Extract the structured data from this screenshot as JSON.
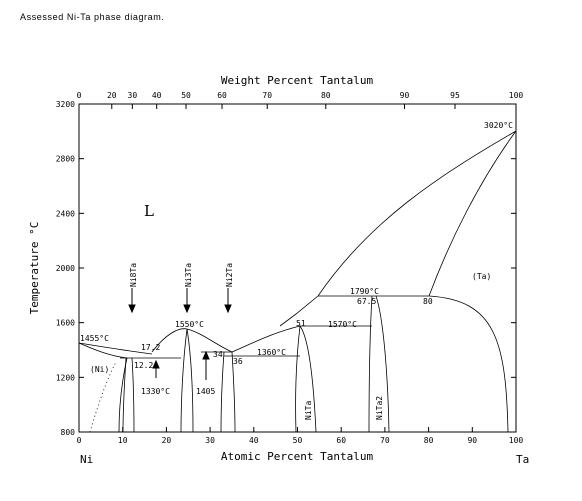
{
  "title": "Assessed Ni-Ta phase diagram.",
  "axes": {
    "top_title": "Weight Percent Tantalum",
    "bottom_title": "Atomic Percent Tantalum",
    "y_title": "Temperature °C",
    "left_element": "Ni",
    "right_element": "Ta",
    "at_ticks": [
      "0",
      "10",
      "20",
      "30",
      "40",
      "50",
      "60",
      "70",
      "80",
      "90",
      "100"
    ],
    "wt_ticks": [
      "0",
      "20",
      "30",
      "40",
      "50",
      "60",
      "70",
      "80",
      "90",
      "95",
      "100"
    ],
    "y_ticks": [
      "800",
      "1200",
      "1600",
      "2000",
      "2400",
      "2800",
      "3200"
    ],
    "y_range": [
      800,
      3200
    ],
    "x_range": [
      0,
      100
    ]
  },
  "labels": {
    "liquid": "L",
    "ni_phase": "(Ni)",
    "ta_phase": "(Ta)",
    "ni8ta": "Ni8Ta",
    "ni3ta": "Ni3Ta",
    "ni2ta": "Ni2Ta",
    "nita": "NiTa",
    "nita2": "NiTa2",
    "t3020": "3020°C",
    "t1455": "1455°C",
    "t1550": "1550°C",
    "t1360": "1360°C",
    "t1330": "1330°C",
    "t1405": "1405",
    "t1790": "1790°C",
    "t1570": "1570°C",
    "c172": "17.2",
    "c122": "12.2",
    "c34": "34",
    "c36": "36",
    "c51": "51",
    "c675": "67.5",
    "c80": "80"
  },
  "chart_data": {
    "type": "phase_diagram",
    "x_unit": "at.% Ta",
    "y_unit": "°C",
    "melting_points": [
      {
        "element": "Ni",
        "x": 0,
        "y": 1455
      },
      {
        "element": "Ta",
        "x": 100,
        "y": 3020
      }
    ],
    "invariants": [
      {
        "label": "1455°C",
        "x": 0,
        "y": 1455
      },
      {
        "label": "1550°C",
        "x": 25,
        "y": 1550
      },
      {
        "label": "1360°C",
        "x": 36,
        "y": 1360
      },
      {
        "label": "1330°C",
        "x": 17.2,
        "y": 1330
      },
      {
        "label": "1405",
        "x": 34,
        "y": 1405
      },
      {
        "label": "1790°C",
        "x": 67.5,
        "y": 1790
      },
      {
        "label": "1570°C",
        "x": 51,
        "y": 1570
      },
      {
        "label": "3020°C",
        "x": 100,
        "y": 3020
      }
    ],
    "compositions": [
      {
        "label": "17.2",
        "x": 17.2
      },
      {
        "label": "12.2",
        "x": 12.2
      },
      {
        "label": "34",
        "x": 34
      },
      {
        "label": "36",
        "x": 36
      },
      {
        "label": "51",
        "x": 51
      },
      {
        "label": "67.5",
        "x": 67.5
      },
      {
        "label": "80",
        "x": 80
      }
    ],
    "phases": [
      "L",
      "(Ni)",
      "(Ta)",
      "Ni8Ta",
      "Ni3Ta",
      "Ni2Ta",
      "NiTa",
      "NiTa2"
    ]
  }
}
